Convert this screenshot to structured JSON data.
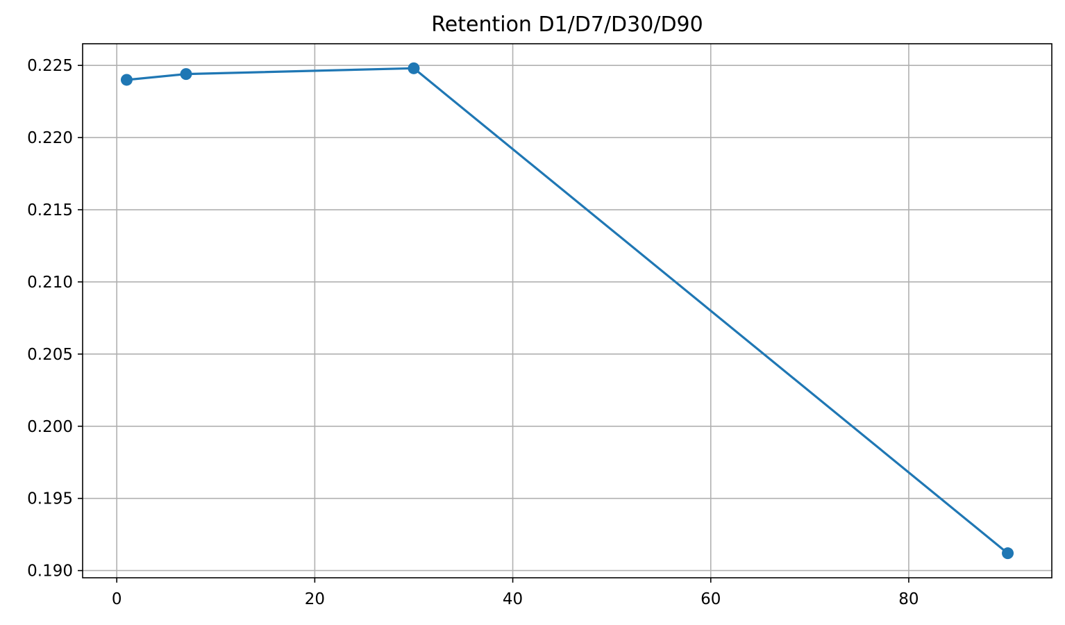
{
  "chart_data": {
    "type": "line",
    "title": "Retention D1/D7/D30/D90",
    "xlabel": "",
    "ylabel": "",
    "x": [
      1,
      7,
      30,
      90
    ],
    "series": [
      {
        "values": [
          0.224,
          0.2244,
          0.2248,
          0.1912
        ],
        "color": "#1f77b4",
        "marker": "circle"
      }
    ],
    "xlim": [
      -3.45,
      94.45
    ],
    "ylim": [
      0.1895,
      0.2265
    ],
    "xticks": [
      0,
      20,
      40,
      60,
      80
    ],
    "xtick_labels": [
      "0",
      "20",
      "40",
      "60",
      "80"
    ],
    "yticks": [
      0.19,
      0.195,
      0.2,
      0.205,
      0.21,
      0.215,
      0.22,
      0.225
    ],
    "ytick_labels": [
      "0.190",
      "0.195",
      "0.200",
      "0.205",
      "0.210",
      "0.215",
      "0.220",
      "0.225"
    ],
    "grid": true,
    "legend": "none"
  }
}
